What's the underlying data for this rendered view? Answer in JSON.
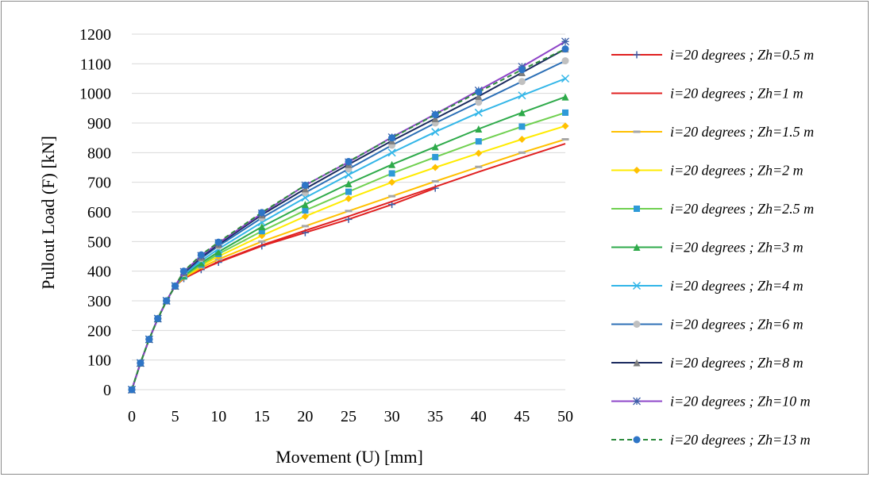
{
  "chart_data": {
    "type": "line",
    "xlabel": "Movement (U) [mm]",
    "ylabel": "Pullout  Load (F) [kN]",
    "xlim": [
      0,
      50
    ],
    "ylim": [
      0,
      1200
    ],
    "xticks": [
      0,
      5,
      10,
      15,
      20,
      25,
      30,
      35,
      40,
      45,
      50
    ],
    "yticks": [
      0,
      100,
      200,
      300,
      400,
      500,
      600,
      700,
      800,
      900,
      1000,
      1100,
      1200
    ],
    "grid": "horizontal",
    "legend_position": "right",
    "series": [
      {
        "name": "i=20 degrees ; Zh=0.5 m",
        "color": "#3c5fa8",
        "line": "#e02020",
        "marker": "plus",
        "x": [
          0,
          1,
          2,
          3,
          4,
          5,
          6,
          8,
          10,
          15,
          20,
          25,
          30,
          35
        ],
        "y": [
          0,
          90,
          170,
          240,
          300,
          350,
          375,
          405,
          430,
          485,
          530,
          575,
          625,
          680
        ]
      },
      {
        "name": "i=20 degrees ; Zh=1 m",
        "color": "#e02020",
        "line": "#e02020",
        "marker": "none",
        "x": [
          0,
          1,
          2,
          3,
          4,
          5,
          6,
          8,
          10,
          15,
          20,
          25,
          30,
          35,
          40,
          45,
          50
        ],
        "y": [
          0,
          90,
          170,
          240,
          300,
          350,
          375,
          405,
          432,
          488,
          537,
          585,
          635,
          685,
          735,
          783,
          830
        ]
      },
      {
        "name": "i=20 degrees ; Zh=1.5 m",
        "color": "#a6a6a6",
        "line": "#ffc000",
        "marker": "dash",
        "x": [
          0,
          1,
          2,
          3,
          4,
          5,
          6,
          8,
          10,
          15,
          20,
          25,
          30,
          35,
          40,
          45,
          50
        ],
        "y": [
          0,
          90,
          170,
          240,
          300,
          350,
          378,
          412,
          440,
          500,
          552,
          603,
          653,
          703,
          752,
          800,
          845
        ]
      },
      {
        "name": "i=20 degrees ; Zh=2 m",
        "color": "#ffc000",
        "line": "#ffeb00",
        "marker": "diamond",
        "x": [
          0,
          1,
          2,
          3,
          4,
          5,
          6,
          8,
          10,
          15,
          20,
          25,
          30,
          35,
          40,
          45,
          50
        ],
        "y": [
          0,
          90,
          170,
          240,
          300,
          350,
          380,
          418,
          450,
          520,
          585,
          645,
          700,
          750,
          798,
          845,
          890
        ]
      },
      {
        "name": "i=20 degrees ; Zh=2.5 m",
        "color": "#2e9ad8",
        "line": "#70d050",
        "marker": "square",
        "x": [
          0,
          1,
          2,
          3,
          4,
          5,
          6,
          8,
          10,
          15,
          20,
          25,
          30,
          35,
          40,
          45,
          50
        ],
        "y": [
          0,
          90,
          170,
          240,
          300,
          350,
          382,
          422,
          458,
          535,
          605,
          668,
          730,
          785,
          838,
          888,
          935
        ]
      },
      {
        "name": "i=20 degrees ; Zh=3 m",
        "color": "#2eaa4a",
        "line": "#2eaa4a",
        "marker": "triangle",
        "x": [
          0,
          1,
          2,
          3,
          4,
          5,
          6,
          8,
          10,
          15,
          20,
          25,
          30,
          35,
          40,
          45,
          50
        ],
        "y": [
          0,
          90,
          170,
          240,
          300,
          350,
          385,
          428,
          465,
          550,
          625,
          695,
          760,
          820,
          880,
          935,
          988
        ]
      },
      {
        "name": "i=20 degrees ; Zh=4 m",
        "color": "#33b6e8",
        "line": "#33b6e8",
        "marker": "x",
        "x": [
          0,
          1,
          2,
          3,
          4,
          5,
          6,
          8,
          10,
          15,
          20,
          25,
          30,
          35,
          40,
          45,
          50
        ],
        "y": [
          0,
          90,
          170,
          240,
          300,
          350,
          388,
          435,
          475,
          565,
          648,
          725,
          800,
          870,
          935,
          993,
          1050
        ]
      },
      {
        "name": "i=20 degrees ; Zh=6 m",
        "color": "#c0c0c0",
        "line": "#2c6fb6",
        "marker": "circle",
        "x": [
          0,
          1,
          2,
          3,
          4,
          5,
          6,
          8,
          10,
          15,
          20,
          25,
          30,
          35,
          40,
          45,
          50
        ],
        "y": [
          0,
          90,
          170,
          240,
          300,
          350,
          392,
          443,
          485,
          580,
          665,
          745,
          825,
          900,
          970,
          1040,
          1110
        ]
      },
      {
        "name": "i=20 degrees ; Zh=8 m",
        "color": "#7f7f7f",
        "line": "#1a2a5e",
        "marker": "triangle",
        "x": [
          0,
          1,
          2,
          3,
          4,
          5,
          6,
          8,
          10,
          15,
          20,
          25,
          30,
          35,
          40,
          45,
          50
        ],
        "y": [
          0,
          90,
          170,
          240,
          300,
          350,
          395,
          447,
          490,
          590,
          678,
          760,
          840,
          915,
          990,
          1070,
          1150
        ]
      },
      {
        "name": "i=20 degrees ; Zh=10 m",
        "color": "#3c5fa8",
        "line": "#8e44c8",
        "marker": "star",
        "x": [
          0,
          1,
          2,
          3,
          4,
          5,
          6,
          8,
          10,
          15,
          20,
          25,
          30,
          35,
          40,
          45,
          50
        ],
        "y": [
          0,
          90,
          170,
          240,
          300,
          350,
          398,
          452,
          495,
          595,
          690,
          768,
          852,
          930,
          1010,
          1090,
          1175
        ]
      },
      {
        "name": "i=20 degrees ; Zh=13 m",
        "color": "#2e75c6",
        "line": "#2e8b3e",
        "marker": "dot",
        "dashed": true,
        "x": [
          0,
          1,
          2,
          3,
          4,
          5,
          6,
          8,
          10,
          15,
          20,
          25,
          30,
          35,
          40,
          45,
          50
        ],
        "y": [
          0,
          90,
          170,
          240,
          300,
          350,
          400,
          455,
          498,
          598,
          690,
          770,
          850,
          928,
          1005,
          1080,
          1150
        ]
      }
    ]
  }
}
